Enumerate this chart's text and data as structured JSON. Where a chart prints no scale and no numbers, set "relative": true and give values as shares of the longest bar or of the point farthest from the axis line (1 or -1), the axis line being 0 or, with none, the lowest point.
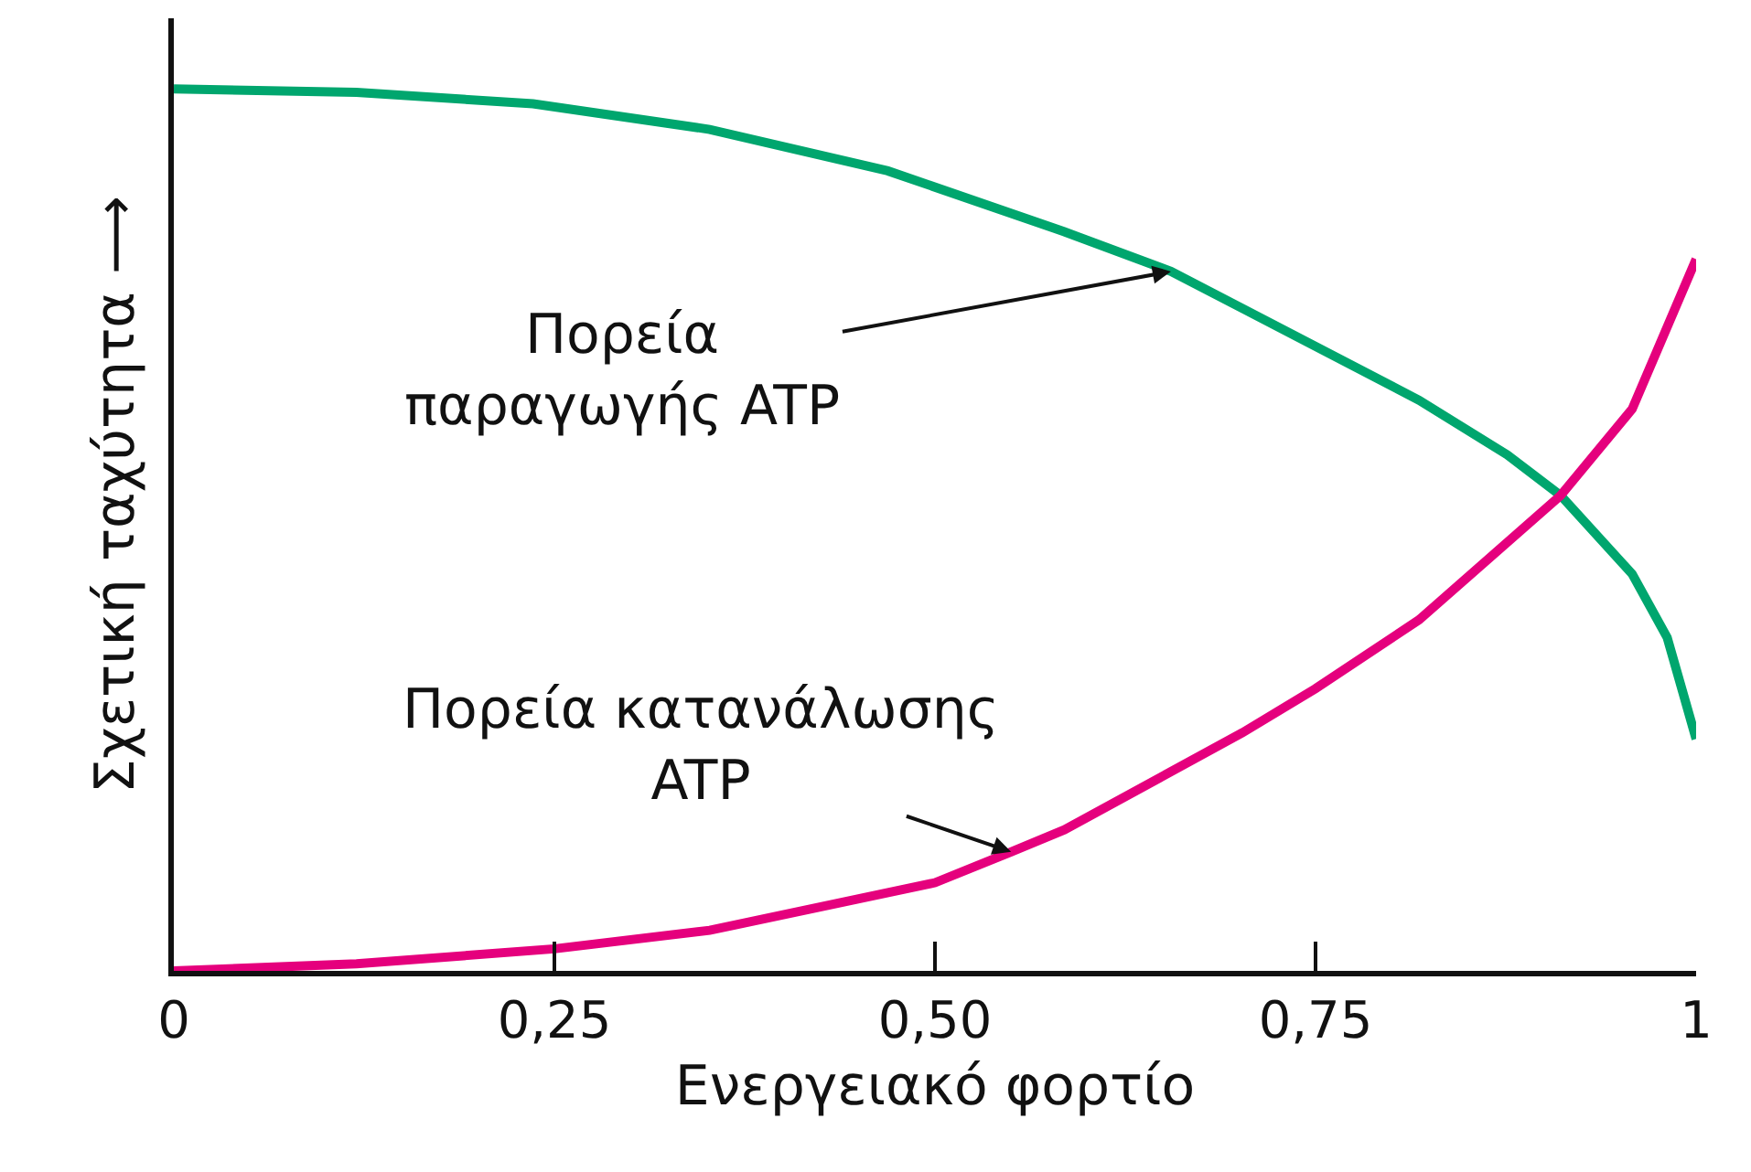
{
  "chart_data": {
    "type": "line",
    "relative": true,
    "xlabel": "Ενεργειακό φορτίο",
    "ylabel": "Σχετική ταχύτητα ⟶",
    "xlim": [
      0,
      1
    ],
    "xticks": [
      {
        "value": 0,
        "label": "0"
      },
      {
        "value": 0.25,
        "label": "0,25"
      },
      {
        "value": 0.5,
        "label": "0,50"
      },
      {
        "value": 0.75,
        "label": "0,75"
      },
      {
        "value": 1,
        "label": "1"
      }
    ],
    "series": [
      {
        "color": "#00a66e",
        "x": [
          0,
          0.12,
          0.236,
          0.352,
          0.469,
          0.585,
          0.655,
          0.702,
          0.818,
          0.876,
          0.911,
          0.958,
          0.981,
          1.0
        ],
        "values": [
          1.0,
          0.996,
          0.983,
          0.954,
          0.907,
          0.838,
          0.793,
          0.751,
          0.647,
          0.585,
          0.539,
          0.45,
          0.378,
          0.263
        ]
      },
      {
        "color": "#e5007d",
        "x": [
          0,
          0.12,
          0.25,
          0.352,
          0.5,
          0.55,
          0.585,
          0.702,
          0.75,
          0.818,
          0.911,
          0.958,
          1.0
        ],
        "values": [
          0,
          0.008,
          0.025,
          0.046,
          0.1,
          0.135,
          0.16,
          0.27,
          0.32,
          0.398,
          0.539,
          0.637,
          0.807
        ]
      }
    ],
    "annotations": [
      {
        "text": "Πορεία\nπαραγωγής ATP",
        "x": 0.655,
        "y": 0.793
      },
      {
        "text": "Πορεία κατανάλωσης\nATP",
        "x": 0.55,
        "y": 0.135
      }
    ]
  }
}
